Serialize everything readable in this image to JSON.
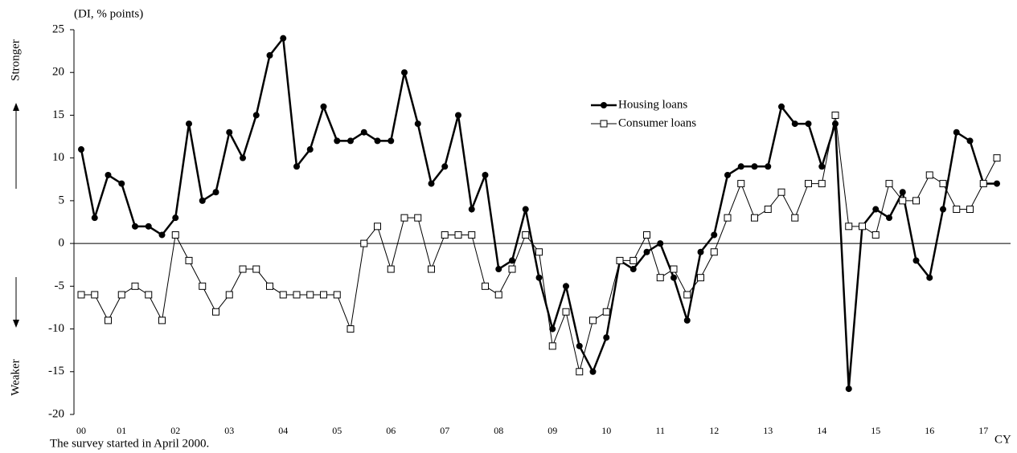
{
  "chart_data": {
    "type": "line",
    "y_label": "(DI, % points)",
    "upper_label": "Stronger",
    "lower_label": "Weaker",
    "note": "The survey started in April 2000.",
    "x_unit": "CY",
    "categories": [
      "00",
      null,
      null,
      "01",
      null,
      null,
      null,
      "02",
      null,
      null,
      null,
      "03",
      null,
      null,
      null,
      "04",
      null,
      null,
      null,
      "05",
      null,
      null,
      null,
      "06",
      null,
      null,
      null,
      "07",
      null,
      null,
      null,
      "08",
      null,
      null,
      null,
      "09",
      null,
      null,
      null,
      "10",
      null,
      null,
      null,
      "11",
      null,
      null,
      null,
      "12",
      null,
      null,
      null,
      "13",
      null,
      null,
      null,
      "14",
      null,
      null,
      null,
      "15",
      null,
      null,
      null,
      "16",
      null,
      null,
      null,
      "17",
      null
    ],
    "series": [
      {
        "name": "Housing loans",
        "color": "#000000",
        "values": [
          11,
          3,
          8,
          7,
          2,
          2,
          1,
          3,
          14,
          5,
          6,
          13,
          10,
          15,
          22,
          24,
          9,
          11,
          16,
          12,
          12,
          13,
          12,
          12,
          20,
          14,
          7,
          9,
          15,
          4,
          8,
          -3,
          -2,
          4,
          -4,
          -10,
          -5,
          -12,
          -15,
          -11,
          -2,
          -3,
          -1,
          0,
          -4,
          -9,
          -1,
          1,
          8,
          9,
          9,
          9,
          16,
          14,
          14,
          9,
          14,
          -17,
          2,
          4,
          3,
          6,
          -2,
          -4,
          4,
          13,
          12,
          7,
          7
        ]
      },
      {
        "name": "Consumer loans",
        "color": "#000000",
        "values": [
          -6,
          -6,
          -9,
          -6,
          -5,
          -6,
          -9,
          1,
          -2,
          -5,
          -8,
          -6,
          -3,
          -3,
          -5,
          -6,
          -6,
          -6,
          -6,
          -6,
          -10,
          0,
          2,
          -3,
          3,
          3,
          -3,
          1,
          1,
          1,
          -5,
          -6,
          -3,
          1,
          -1,
          -12,
          -8,
          -15,
          -9,
          -8,
          -2,
          -2,
          1,
          -4,
          -3,
          -6,
          -4,
          -1,
          3,
          7,
          3,
          4,
          6,
          3,
          7,
          7,
          15,
          2,
          2,
          1,
          7,
          5,
          5,
          8,
          7,
          4,
          4,
          7,
          10
        ]
      }
    ],
    "ylim": [
      -20,
      25
    ],
    "yticks": [
      -20,
      -15,
      -10,
      -5,
      0,
      5,
      10,
      15,
      20,
      25
    ]
  }
}
